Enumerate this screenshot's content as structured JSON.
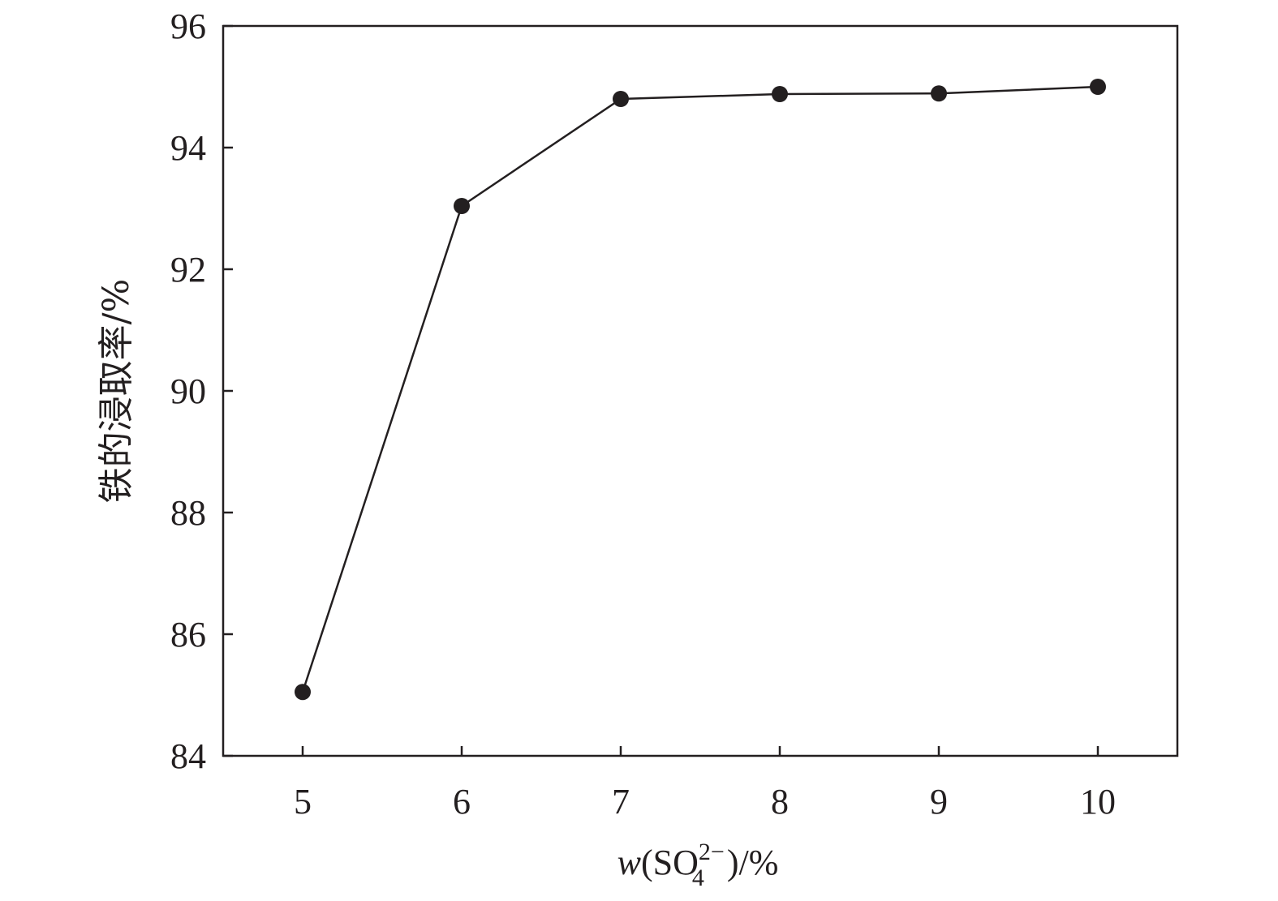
{
  "chart_data": {
    "type": "line",
    "title": "",
    "xlabel": {
      "prefix": "w",
      "open": "(SO",
      "sub": "4",
      "sup": "2−",
      "close": ")/%"
    },
    "ylabel": "铁的浸取率/%",
    "x": [
      5,
      6,
      7,
      8,
      9,
      10
    ],
    "series": [
      {
        "values": [
          85.05,
          93.04,
          94.8,
          94.88,
          94.89,
          95.0
        ]
      }
    ],
    "xlim": [
      4.5,
      10.5
    ],
    "ylim": [
      84,
      96
    ],
    "xticks": [
      5,
      6,
      7,
      8,
      9,
      10
    ],
    "yticks": [
      84,
      86,
      88,
      90,
      92,
      94,
      96
    ],
    "grid": false,
    "marker": "filled-circle",
    "color": "#231f20"
  }
}
